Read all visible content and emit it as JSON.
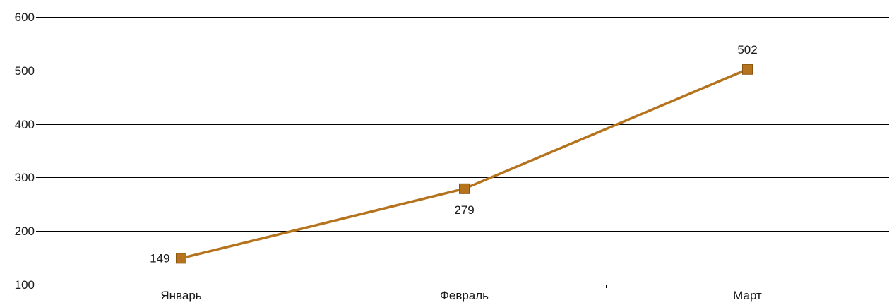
{
  "chart_data": {
    "type": "line",
    "title": "",
    "xlabel": "",
    "ylabel": "",
    "categories": [
      "Январь",
      "Февраль",
      "Март"
    ],
    "series": [
      {
        "values": [
          149,
          279,
          502
        ],
        "color": "#b5731e",
        "marker": "square"
      }
    ],
    "ylim": [
      100,
      600
    ],
    "yticks": [
      100,
      200,
      300,
      400,
      500,
      600
    ],
    "ytick_labels": [
      "100",
      "200",
      "300",
      "400",
      "500",
      "600"
    ],
    "data_labels": [
      "149",
      "279",
      "502"
    ],
    "grid": true,
    "legend": "none"
  }
}
